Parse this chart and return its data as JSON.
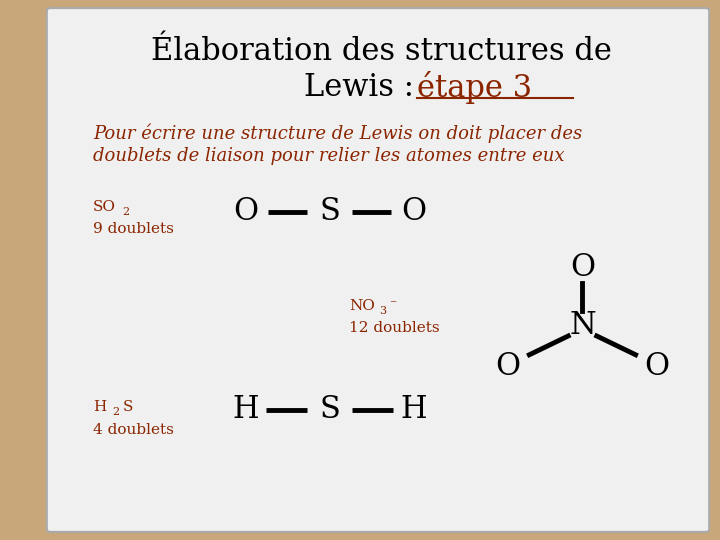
{
  "title_line1": "Élaboration des structures de",
  "title_line2_black": "Lewis : ",
  "title_line2_brown": "étape 3",
  "title_color": "#000000",
  "highlight_color": "#8B2500",
  "subtitle_line1": "Pour écrire une structure de Lewis on doit placer des",
  "subtitle_line2": "doublets de liaison pour relier les atomes entre eux",
  "subtitle_color": "#8B2500",
  "bg_slide": "#C8A87A",
  "bg_white": "#F0F0F0",
  "bond_color": "#000000",
  "atom_color": "#000000",
  "title_fontsize": 22,
  "subtitle_fontsize": 13,
  "label_fontsize": 11,
  "molecule_fontsize": 20
}
